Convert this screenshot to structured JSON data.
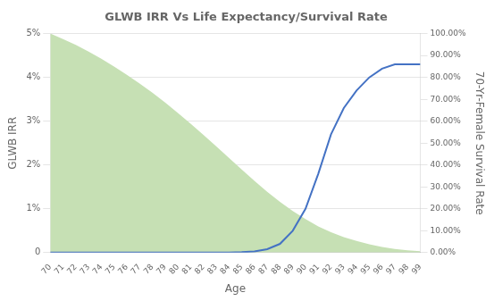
{
  "chart_data": {
    "type": "line",
    "title": "GLWB IRR Vs Life Expectancy/Survival Rate",
    "xlabel": "Age",
    "ylabel": "GLWB IRR",
    "y2label": "70-Yr-Female Survival Rate",
    "x": [
      70,
      71,
      72,
      73,
      74,
      75,
      76,
      77,
      78,
      79,
      80,
      81,
      82,
      83,
      84,
      85,
      86,
      87,
      88,
      89,
      90,
      91,
      92,
      93,
      94,
      95,
      96,
      97,
      98,
      99
    ],
    "series": [
      {
        "type": "area",
        "axis": "y2",
        "color": "#c6e0b4",
        "values": [
          1.0,
          0.975,
          0.948,
          0.918,
          0.885,
          0.85,
          0.812,
          0.772,
          0.73,
          0.685,
          0.638,
          0.589,
          0.538,
          0.486,
          0.433,
          0.38,
          0.328,
          0.278,
          0.232,
          0.19,
          0.153,
          0.12,
          0.093,
          0.071,
          0.053,
          0.038,
          0.026,
          0.017,
          0.011,
          0.007
        ]
      },
      {
        "type": "line",
        "color": "#4472c4",
        "values": [
          0.0,
          0.0,
          0.0,
          0.0,
          0.0,
          0.0,
          0.0,
          0.0,
          0.0,
          0.0,
          0.0,
          0.0,
          0.0,
          0.0,
          0.0,
          0.0001,
          0.0003,
          0.0008,
          0.002,
          0.005,
          0.01,
          0.018,
          0.027,
          0.033,
          0.037,
          0.04,
          0.042,
          0.043,
          0.043,
          0.043
        ]
      }
    ],
    "xlim": [
      70,
      99
    ],
    "xticks": [
      70,
      71,
      72,
      73,
      74,
      75,
      76,
      77,
      78,
      79,
      80,
      81,
      82,
      83,
      84,
      85,
      86,
      87,
      88,
      89,
      90,
      91,
      92,
      93,
      94,
      95,
      96,
      97,
      98,
      99
    ],
    "ylim": [
      0,
      0.05
    ],
    "yticks": [
      0,
      {
        "value": 0.01,
        "label": "1%"
      },
      {
        "value": 0.02,
        "label": "2%"
      },
      {
        "value": 0.03,
        "label": "3%"
      },
      {
        "value": 0.04,
        "label": "4%"
      },
      {
        "value": 0.05,
        "label": "5%"
      }
    ],
    "y2lim": [
      0,
      1.0
    ],
    "y2ticks": [
      {
        "value": 0.0,
        "label": "0.00%"
      },
      {
        "value": 0.1,
        "label": "10.00%"
      },
      {
        "value": 0.2,
        "label": "20.00%"
      },
      {
        "value": 0.3,
        "label": "30.00%"
      },
      {
        "value": 0.4,
        "label": "40.00%"
      },
      {
        "value": 0.5,
        "label": "50.00%"
      },
      {
        "value": 0.6,
        "label": "60.00%"
      },
      {
        "value": 0.7,
        "label": "70.00%"
      },
      {
        "value": 0.8,
        "label": "80.00%"
      },
      {
        "value": 0.9,
        "label": "90.00%"
      },
      {
        "value": 1.0,
        "label": "100.00%"
      }
    ],
    "grid": true
  }
}
